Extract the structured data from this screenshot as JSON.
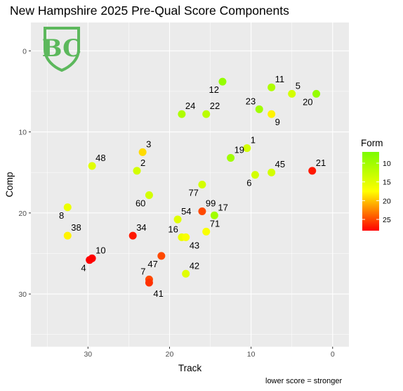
{
  "chart_data": {
    "type": "scatter",
    "title": "New Hampshire 2025 Pre-Qual Score Components",
    "xlabel": "Track",
    "ylabel": "Comp",
    "caption": "lower score = stronger",
    "x_reversed": true,
    "y_reversed": true,
    "xlim": [
      37,
      -2
    ],
    "ylim": [
      -3.5,
      36.5
    ],
    "x_ticks": [
      30,
      20,
      10,
      0
    ],
    "y_ticks": [
      0,
      10,
      20,
      30
    ],
    "grid": true,
    "logo": "BC",
    "color_scale": {
      "name": "Form",
      "min": 7,
      "max": 28,
      "ticks": [
        10,
        15,
        20,
        25
      ],
      "colors": [
        "#7cfc00",
        "#ffff00",
        "#ff0000"
      ]
    },
    "points": [
      {
        "label": "12",
        "x": 13.5,
        "y": 3.8,
        "form": 9,
        "lab_pos": "bl"
      },
      {
        "label": "11",
        "x": 7.5,
        "y": 4.5,
        "form": 11,
        "lab_pos": "tr"
      },
      {
        "label": "5",
        "x": 5.0,
        "y": 5.3,
        "form": 14,
        "lab_pos": "tr"
      },
      {
        "label": "20",
        "x": 2.0,
        "y": 5.3,
        "form": 9,
        "lab_pos": "bl"
      },
      {
        "label": "24",
        "x": 18.5,
        "y": 7.8,
        "form": 11,
        "lab_pos": "tr"
      },
      {
        "label": "22",
        "x": 15.5,
        "y": 7.8,
        "form": 12,
        "lab_pos": "tr"
      },
      {
        "label": "23",
        "x": 9.0,
        "y": 7.2,
        "form": 10,
        "lab_pos": "tl"
      },
      {
        "label": "9",
        "x": 7.5,
        "y": 7.8,
        "form": 18,
        "lab_pos": "br"
      },
      {
        "label": "3",
        "x": 23.3,
        "y": 12.5,
        "form": 19,
        "lab_pos": "tr"
      },
      {
        "label": "1",
        "x": 10.5,
        "y": 12.0,
        "form": 14,
        "lab_pos": "tr"
      },
      {
        "label": "19",
        "x": 12.5,
        "y": 13.2,
        "form": 10,
        "lab_pos": "tr"
      },
      {
        "label": "48",
        "x": 29.5,
        "y": 14.2,
        "form": 15,
        "lab_pos": "tr"
      },
      {
        "label": "2",
        "x": 24.0,
        "y": 14.8,
        "form": 14,
        "lab_pos": "tr"
      },
      {
        "label": "45",
        "x": 7.5,
        "y": 15.0,
        "form": 14,
        "lab_pos": "tr"
      },
      {
        "label": "6",
        "x": 9.5,
        "y": 15.3,
        "form": 14,
        "lab_pos": "bl"
      },
      {
        "label": "21",
        "x": 2.5,
        "y": 14.8,
        "form": 27,
        "lab_pos": "tr"
      },
      {
        "label": "77",
        "x": 16.0,
        "y": 16.5,
        "form": 14,
        "lab_pos": "bl"
      },
      {
        "label": "60",
        "x": 22.5,
        "y": 17.8,
        "form": 14,
        "lab_pos": "bl"
      },
      {
        "label": "8",
        "x": 32.5,
        "y": 19.3,
        "form": 16,
        "lab_pos": "bl"
      },
      {
        "label": "99",
        "x": 16.0,
        "y": 19.8,
        "form": 25,
        "lab_pos": "tr"
      },
      {
        "label": "17",
        "x": 14.5,
        "y": 20.3,
        "form": 10,
        "lab_pos": "tr"
      },
      {
        "label": "54",
        "x": 19.0,
        "y": 20.8,
        "form": 15,
        "lab_pos": "tr"
      },
      {
        "label": "71",
        "x": 15.5,
        "y": 22.3,
        "form": 17,
        "lab_pos": "tr"
      },
      {
        "label": "38",
        "x": 32.5,
        "y": 22.8,
        "form": 18,
        "lab_pos": "tr"
      },
      {
        "label": "34",
        "x": 24.5,
        "y": 22.8,
        "form": 27,
        "lab_pos": "tr"
      },
      {
        "label": "16",
        "x": 18.5,
        "y": 23.0,
        "form": 16,
        "lab_pos": "tl"
      },
      {
        "label": "43",
        "x": 18.0,
        "y": 23.0,
        "form": 17,
        "lab_pos": "br"
      },
      {
        "label": "10",
        "x": 29.5,
        "y": 25.6,
        "form": 28,
        "lab_pos": "tr"
      },
      {
        "label": "4",
        "x": 29.8,
        "y": 25.8,
        "form": 28,
        "lab_pos": "bl"
      },
      {
        "label": "47",
        "x": 21.0,
        "y": 25.3,
        "form": 25,
        "lab_pos": "bl"
      },
      {
        "label": "42",
        "x": 18.0,
        "y": 27.5,
        "form": 15,
        "lab_pos": "tr"
      },
      {
        "label": "7",
        "x": 22.5,
        "y": 28.2,
        "form": 25,
        "lab_pos": "tl"
      },
      {
        "label": "41",
        "x": 22.5,
        "y": 28.6,
        "form": 26,
        "lab_pos": "b"
      }
    ]
  }
}
